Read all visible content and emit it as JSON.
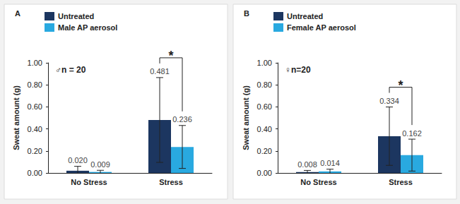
{
  "chart_data": [
    {
      "type": "bar",
      "title": "A",
      "annotations": [
        "♂n = 20"
      ],
      "categories": [
        "No Stress",
        "Stress"
      ],
      "ylabel": "Sweat amount (g)",
      "ylim": [
        0,
        1
      ],
      "yticks": [
        {
          "value": 0,
          "label": "0.00"
        },
        {
          "value": 0.2,
          "label": "0.20"
        },
        {
          "value": 0.4,
          "label": "0.40"
        },
        {
          "value": 0.6,
          "label": "0.60"
        },
        {
          "value": 0.8,
          "label": "0.80"
        },
        {
          "value": 1,
          "label": "1.00"
        }
      ],
      "grid": false,
      "legend": "upper-left",
      "data_labels": true,
      "series": [
        {
          "name": "Untreated",
          "color": "#1c3660",
          "values": [
            0.02,
            0.481
          ],
          "value_labels": [
            "0.020",
            "0.481"
          ],
          "errors": [
            0.04,
            0.385
          ]
        },
        {
          "name": "Male AP aerosol",
          "color": "#29a9e0",
          "values": [
            0.009,
            0.236
          ],
          "value_labels": [
            "0.009",
            "0.236"
          ],
          "errors": [
            0.015,
            0.195
          ]
        }
      ],
      "significance": [
        {
          "category": "Stress",
          "label": "*"
        }
      ]
    },
    {
      "type": "bar",
      "title": "B",
      "annotations": [
        "♀n=20"
      ],
      "categories": [
        "No Stress",
        "Stress"
      ],
      "ylabel": "Sweat amount (g)",
      "ylim": [
        0,
        1
      ],
      "yticks": [
        {
          "value": 0,
          "label": "0.00"
        },
        {
          "value": 0.2,
          "label": "0.20"
        },
        {
          "value": 0.4,
          "label": "0.40"
        },
        {
          "value": 0.6,
          "label": "0.60"
        },
        {
          "value": 0.8,
          "label": "0.80"
        },
        {
          "value": 1,
          "label": "1.00"
        }
      ],
      "grid": false,
      "legend": "upper-left",
      "data_labels": true,
      "series": [
        {
          "name": "Untreated",
          "color": "#1c3660",
          "values": [
            0.008,
            0.334
          ],
          "value_labels": [
            "0.008",
            "0.334"
          ],
          "errors": [
            0.015,
            0.265
          ]
        },
        {
          "name": "Female AP aerosol",
          "color": "#29a9e0",
          "values": [
            0.014,
            0.162
          ],
          "value_labels": [
            "0.014",
            "0.162"
          ],
          "errors": [
            0.02,
            0.145
          ]
        }
      ],
      "significance": [
        {
          "category": "Stress",
          "label": "*"
        }
      ]
    }
  ]
}
